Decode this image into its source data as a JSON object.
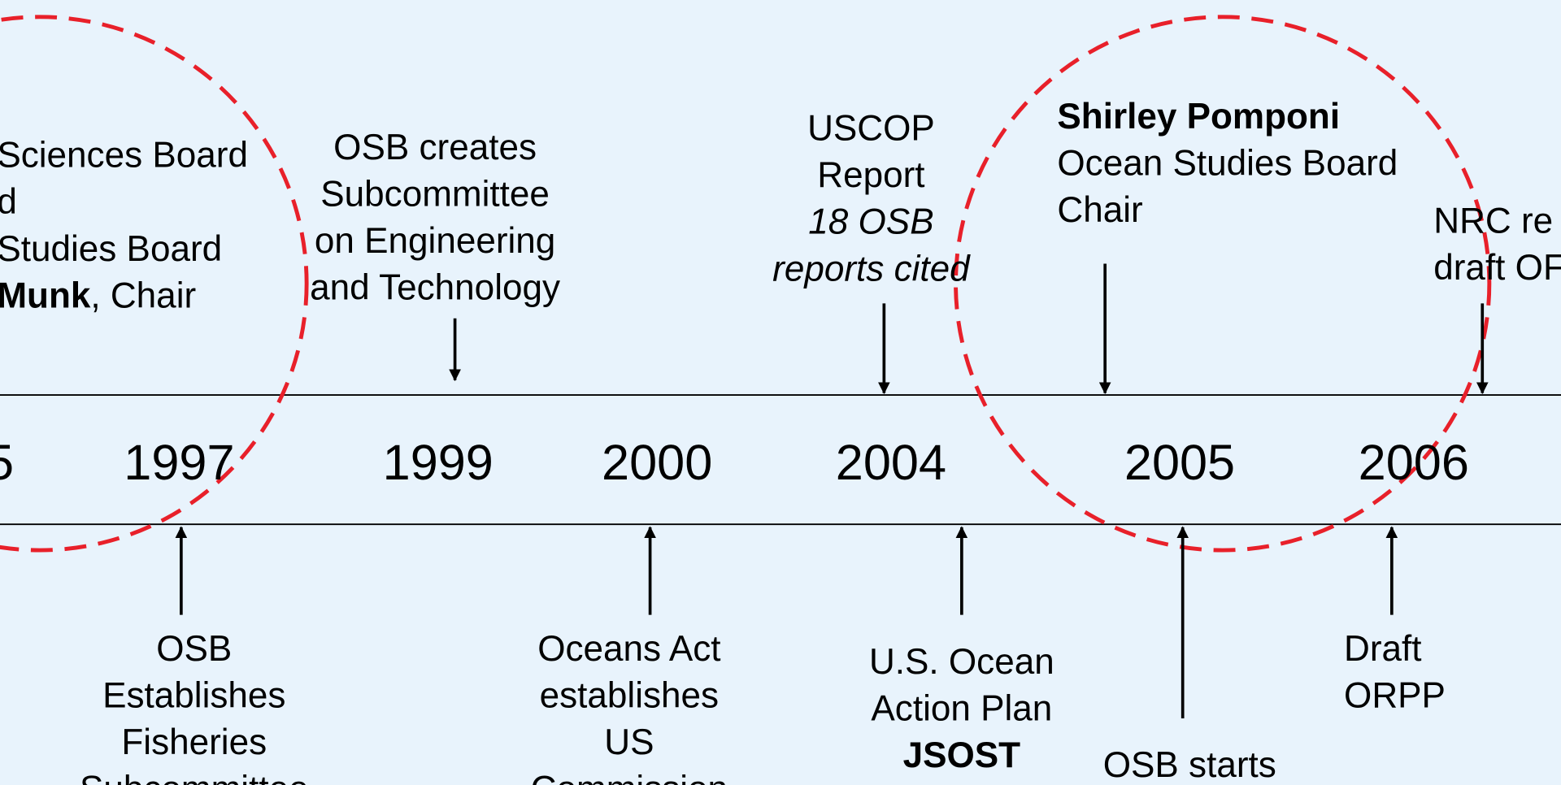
{
  "years": [
    "5",
    "1997",
    "1999",
    "2000",
    "2004",
    "2005",
    "2006"
  ],
  "events_above": [
    {
      "lines": [
        [
          {
            "text": "Sciences Board"
          }
        ],
        [
          {
            "text": "d"
          }
        ],
        [
          {
            "text": "Studies Board"
          }
        ],
        [
          {
            "text": "Munk",
            "style": "bold"
          },
          {
            "text": ", Chair"
          }
        ]
      ]
    },
    {
      "lines": [
        [
          {
            "text": "OSB creates"
          }
        ],
        [
          {
            "text": "Subcommittee"
          }
        ],
        [
          {
            "text": "on Engineering"
          }
        ],
        [
          {
            "text": "and Technology"
          }
        ]
      ]
    },
    {
      "lines": [
        [
          {
            "text": "USCOP"
          }
        ],
        [
          {
            "text": "Report"
          }
        ],
        [
          {
            "text": "18 OSB",
            "style": "italic"
          }
        ],
        [
          {
            "text": "reports cited",
            "style": "italic"
          }
        ]
      ]
    },
    {
      "lines": [
        [
          {
            "text": "Shirley Pomponi",
            "style": "bold"
          }
        ],
        [
          {
            "text": "Ocean Studies Board"
          }
        ],
        [
          {
            "text": "Chair"
          }
        ]
      ]
    },
    {
      "lines": [
        [
          {
            "text": "NRC re"
          }
        ],
        [
          {
            "text": "draft OF"
          }
        ]
      ]
    }
  ],
  "events_below": [
    {
      "lines": [
        [
          {
            "text": "OSB"
          }
        ],
        [
          {
            "text": "Establishes"
          }
        ],
        [
          {
            "text": "Fisheries"
          }
        ],
        [
          {
            "text": "Subcommittee"
          }
        ]
      ]
    },
    {
      "lines": [
        [
          {
            "text": "Oceans Act"
          }
        ],
        [
          {
            "text": "establishes"
          }
        ],
        [
          {
            "text": "US"
          }
        ],
        [
          {
            "text": "Commission"
          }
        ]
      ]
    },
    {
      "lines": [
        [
          {
            "text": "U.S. Ocean"
          }
        ],
        [
          {
            "text": "Action Plan"
          }
        ],
        [
          {
            "text": "JSOST",
            "style": "bold"
          }
        ]
      ]
    },
    {
      "lines": [
        [
          {
            "text": "OSB starts"
          }
        ]
      ]
    },
    {
      "lines": [
        [
          {
            "text": "Draft"
          }
        ],
        [
          {
            "text": "ORPP"
          }
        ]
      ]
    }
  ]
}
